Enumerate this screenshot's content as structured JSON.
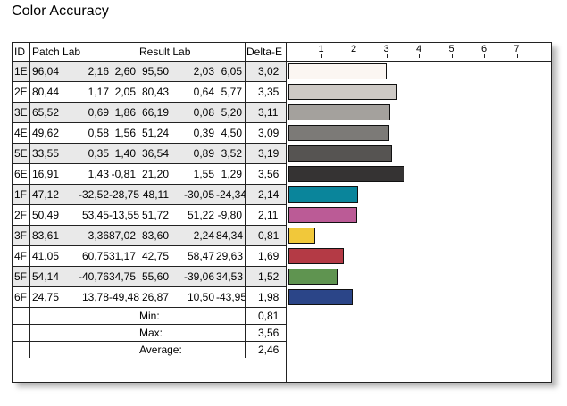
{
  "title": "Color Accuracy",
  "chart_data": {
    "type": "table",
    "columns": [
      "ID",
      "Patch Lab",
      "Result Lab",
      "Delta-E"
    ],
    "axis_ticks": [
      1,
      2,
      3,
      4,
      5,
      6,
      7
    ],
    "xlim": [
      0,
      8
    ],
    "rows": [
      {
        "id": "1E",
        "patch": [
          "96,04",
          "2,16",
          "2,60"
        ],
        "result": [
          "95,50",
          "2,03",
          "6,05"
        ],
        "delta_label": "3,02",
        "delta": 3.02,
        "color": "#fbf6f2"
      },
      {
        "id": "2E",
        "patch": [
          "80,44",
          "1,17",
          "2,05"
        ],
        "result": [
          "80,43",
          "0,64",
          "5,77"
        ],
        "delta_label": "3,35",
        "delta": 3.35,
        "color": "#cdc9c5"
      },
      {
        "id": "3E",
        "patch": [
          "65,52",
          "0,69",
          "1,86"
        ],
        "result": [
          "66,19",
          "0,08",
          "5,20"
        ],
        "delta_label": "3,11",
        "delta": 3.11,
        "color": "#a4a19d"
      },
      {
        "id": "4E",
        "patch": [
          "49,62",
          "0,58",
          "1,56"
        ],
        "result": [
          "51,24",
          "0,39",
          "4,50"
        ],
        "delta_label": "3,09",
        "delta": 3.09,
        "color": "#7c7a77"
      },
      {
        "id": "5E",
        "patch": [
          "33,55",
          "0,35",
          "1,40"
        ],
        "result": [
          "36,54",
          "0,89",
          "3,52"
        ],
        "delta_label": "3,19",
        "delta": 3.19,
        "color": "#565452"
      },
      {
        "id": "6E",
        "patch": [
          "16,91",
          "1,43",
          "-0,81"
        ],
        "result": [
          "21,20",
          "1,55",
          "1,29"
        ],
        "delta_label": "3,56",
        "delta": 3.56,
        "color": "#353333"
      },
      {
        "id": "1F",
        "patch": [
          "47,12",
          "-32,52",
          "-28,75"
        ],
        "result": [
          "48,11",
          "-30,05",
          "-24,34"
        ],
        "delta_label": "2,14",
        "delta": 2.14,
        "color": "#0a859b"
      },
      {
        "id": "2F",
        "patch": [
          "50,49",
          "53,45",
          "-13,55"
        ],
        "result": [
          "51,72",
          "51,22",
          "-9,80"
        ],
        "delta_label": "2,11",
        "delta": 2.11,
        "color": "#bb5b96"
      },
      {
        "id": "3F",
        "patch": [
          "83,61",
          "3,36",
          "87,02"
        ],
        "result": [
          "83,60",
          "2,24",
          "84,34"
        ],
        "delta_label": "0,81",
        "delta": 0.81,
        "color": "#f1c83a"
      },
      {
        "id": "4F",
        "patch": [
          "41,05",
          "60,75",
          "31,17"
        ],
        "result": [
          "42,75",
          "58,47",
          "29,63"
        ],
        "delta_label": "1,69",
        "delta": 1.69,
        "color": "#b43a45"
      },
      {
        "id": "5F",
        "patch": [
          "54,14",
          "-40,76",
          "34,75"
        ],
        "result": [
          "55,60",
          "-39,06",
          "34,53"
        ],
        "delta_label": "1,52",
        "delta": 1.52,
        "color": "#5f9450"
      },
      {
        "id": "6F",
        "patch": [
          "24,75",
          "13,78",
          "-49,48"
        ],
        "result": [
          "26,87",
          "10,50",
          "-43,95"
        ],
        "delta_label": "1,98",
        "delta": 1.98,
        "color": "#2b4588"
      }
    ],
    "summary": [
      {
        "label": "Min:",
        "value": "0,81"
      },
      {
        "label": "Max:",
        "value": "3,56"
      },
      {
        "label": "Average:",
        "value": "2,46"
      }
    ]
  }
}
